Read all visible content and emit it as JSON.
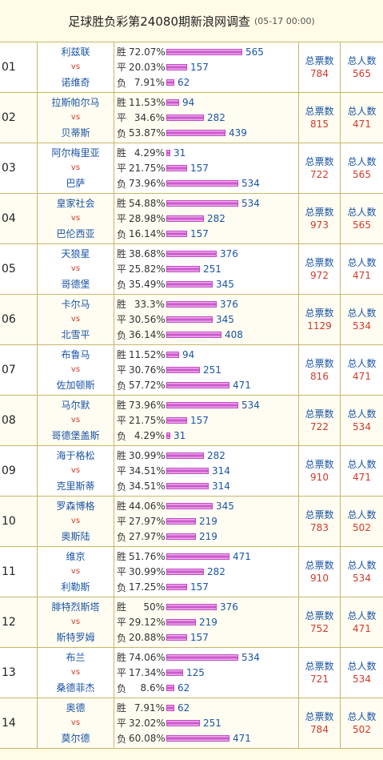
{
  "header": {
    "title": "足球胜负彩第24080期新浪网调查",
    "date": "(05-17 00:00)"
  },
  "labels": {
    "vs": "vs",
    "total": "总票数",
    "people": "总人数"
  },
  "colors": {
    "team": "#1a54a6",
    "vs": "#d23a2a",
    "bar": "#c545c5",
    "bg": "#fffbe6"
  },
  "matches": [
    {
      "no": "01",
      "home": "利兹联",
      "away": "诺维奇",
      "total": "784",
      "people": "565",
      "votes": [
        {
          "label": "胜",
          "pct": "72.07%",
          "count": "565"
        },
        {
          "label": "平",
          "pct": "20.03%",
          "count": "157"
        },
        {
          "label": "负",
          "pct": "7.91%",
          "count": "62"
        }
      ]
    },
    {
      "no": "02",
      "home": "拉斯帕尔马",
      "away": "贝蒂斯",
      "total": "815",
      "people": "471",
      "votes": [
        {
          "label": "胜",
          "pct": "11.53%",
          "count": "94"
        },
        {
          "label": "平",
          "pct": "34.6%",
          "count": "282"
        },
        {
          "label": "负",
          "pct": "53.87%",
          "count": "439"
        }
      ]
    },
    {
      "no": "03",
      "home": "阿尔梅里亚",
      "away": "巴萨",
      "total": "722",
      "people": "565",
      "votes": [
        {
          "label": "胜",
          "pct": "4.29%",
          "count": "31"
        },
        {
          "label": "平",
          "pct": "21.75%",
          "count": "157"
        },
        {
          "label": "负",
          "pct": "73.96%",
          "count": "534"
        }
      ]
    },
    {
      "no": "04",
      "home": "皇家社会",
      "away": "巴伦西亚",
      "total": "973",
      "people": "565",
      "votes": [
        {
          "label": "胜",
          "pct": "54.88%",
          "count": "534"
        },
        {
          "label": "平",
          "pct": "28.98%",
          "count": "282"
        },
        {
          "label": "负",
          "pct": "16.14%",
          "count": "157"
        }
      ]
    },
    {
      "no": "05",
      "home": "天狼星",
      "away": "哥德堡",
      "total": "972",
      "people": "471",
      "votes": [
        {
          "label": "胜",
          "pct": "38.68%",
          "count": "376"
        },
        {
          "label": "平",
          "pct": "25.82%",
          "count": "251"
        },
        {
          "label": "负",
          "pct": "35.49%",
          "count": "345"
        }
      ]
    },
    {
      "no": "06",
      "home": "卡尔马",
      "away": "北雪平",
      "total": "1129",
      "people": "534",
      "votes": [
        {
          "label": "胜",
          "pct": "33.3%",
          "count": "376"
        },
        {
          "label": "平",
          "pct": "30.56%",
          "count": "345"
        },
        {
          "label": "负",
          "pct": "36.14%",
          "count": "408"
        }
      ]
    },
    {
      "no": "07",
      "home": "布鲁马",
      "away": "佐加顿斯",
      "total": "816",
      "people": "471",
      "votes": [
        {
          "label": "胜",
          "pct": "11.52%",
          "count": "94"
        },
        {
          "label": "平",
          "pct": "30.76%",
          "count": "251"
        },
        {
          "label": "负",
          "pct": "57.72%",
          "count": "471"
        }
      ]
    },
    {
      "no": "08",
      "home": "马尔默",
      "away": "哥德堡盖斯",
      "total": "722",
      "people": "534",
      "votes": [
        {
          "label": "胜",
          "pct": "73.96%",
          "count": "534"
        },
        {
          "label": "平",
          "pct": "21.75%",
          "count": "157"
        },
        {
          "label": "负",
          "pct": "4.29%",
          "count": "31"
        }
      ]
    },
    {
      "no": "09",
      "home": "海于格松",
      "away": "克里斯蒂",
      "total": "910",
      "people": "471",
      "votes": [
        {
          "label": "胜",
          "pct": "30.99%",
          "count": "282"
        },
        {
          "label": "平",
          "pct": "34.51%",
          "count": "314"
        },
        {
          "label": "负",
          "pct": "34.51%",
          "count": "314"
        }
      ]
    },
    {
      "no": "10",
      "home": "罗森博格",
      "away": "奥斯陆",
      "total": "783",
      "people": "502",
      "votes": [
        {
          "label": "胜",
          "pct": "44.06%",
          "count": "345"
        },
        {
          "label": "平",
          "pct": "27.97%",
          "count": "219"
        },
        {
          "label": "负",
          "pct": "27.97%",
          "count": "219"
        }
      ]
    },
    {
      "no": "11",
      "home": "维京",
      "away": "利勒斯",
      "total": "910",
      "people": "534",
      "votes": [
        {
          "label": "胜",
          "pct": "51.76%",
          "count": "471"
        },
        {
          "label": "平",
          "pct": "30.99%",
          "count": "282"
        },
        {
          "label": "负",
          "pct": "17.25%",
          "count": "157"
        }
      ]
    },
    {
      "no": "12",
      "home": "腓特烈斯塔",
      "away": "斯特罗姆",
      "total": "752",
      "people": "471",
      "votes": [
        {
          "label": "胜",
          "pct": "50%",
          "count": "376"
        },
        {
          "label": "平",
          "pct": "29.12%",
          "count": "219"
        },
        {
          "label": "负",
          "pct": "20.88%",
          "count": "157"
        }
      ]
    },
    {
      "no": "13",
      "home": "布兰",
      "away": "桑德菲杰",
      "total": "721",
      "people": "534",
      "votes": [
        {
          "label": "胜",
          "pct": "74.06%",
          "count": "534"
        },
        {
          "label": "平",
          "pct": "17.34%",
          "count": "125"
        },
        {
          "label": "负",
          "pct": "8.6%",
          "count": "62"
        }
      ]
    },
    {
      "no": "14",
      "home": "奥德",
      "away": "莫尔德",
      "total": "784",
      "people": "502",
      "votes": [
        {
          "label": "胜",
          "pct": "7.91%",
          "count": "62"
        },
        {
          "label": "平",
          "pct": "32.02%",
          "count": "251"
        },
        {
          "label": "负",
          "pct": "60.08%",
          "count": "471"
        }
      ]
    }
  ]
}
